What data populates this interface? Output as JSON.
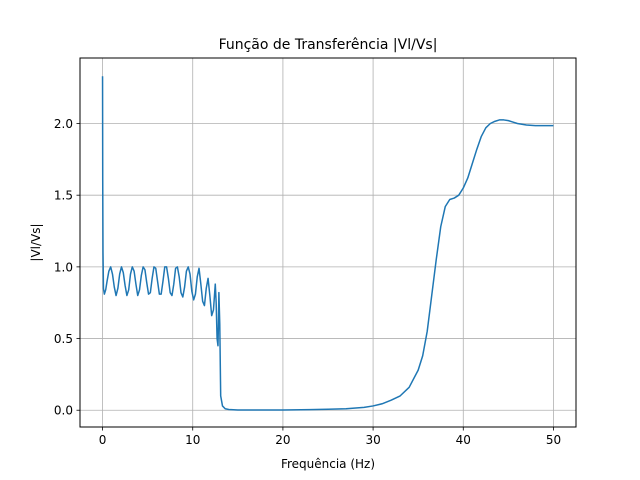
{
  "chart_data": {
    "type": "line",
    "title": "Função de Transferência |Vl/Vs|",
    "xlabel": "Frequência (Hz)",
    "ylabel": "|Vl/Vs|",
    "xlim": [
      -2.5,
      52.5
    ],
    "ylim": [
      -0.117,
      2.457
    ],
    "xticks": [
      0,
      10,
      20,
      30,
      40,
      50
    ],
    "xtick_labels": [
      "0",
      "10",
      "20",
      "30",
      "40",
      "50"
    ],
    "yticks": [
      0.0,
      0.5,
      1.0,
      1.5,
      2.0
    ],
    "ytick_labels": [
      "0.0",
      "0.5",
      "1.0",
      "1.5",
      "2.0"
    ],
    "grid": true,
    "series": [
      {
        "color": "#1f77b4",
        "x": [
          0,
          0.02,
          0.05,
          0.1,
          0.2,
          0.35,
          0.5,
          0.7,
          0.9,
          1.1,
          1.3,
          1.5,
          1.7,
          1.9,
          2.1,
          2.3,
          2.5,
          2.7,
          2.9,
          3.1,
          3.3,
          3.5,
          3.7,
          3.9,
          4.1,
          4.3,
          4.5,
          4.7,
          4.9,
          5.1,
          5.3,
          5.5,
          5.7,
          5.9,
          6.1,
          6.3,
          6.5,
          6.7,
          6.9,
          7.1,
          7.3,
          7.5,
          7.7,
          7.9,
          8.1,
          8.3,
          8.5,
          8.7,
          8.9,
          9.1,
          9.3,
          9.5,
          9.7,
          9.9,
          10.1,
          10.3,
          10.5,
          10.7,
          10.9,
          11.1,
          11.3,
          11.5,
          11.7,
          11.9,
          12.1,
          12.3,
          12.5,
          12.6,
          12.7,
          12.8,
          12.85,
          12.9,
          13.0,
          13.1,
          13.3,
          13.6,
          14,
          15,
          17,
          20,
          23,
          25,
          27,
          29,
          30,
          31,
          32,
          33,
          34,
          35,
          35.5,
          36,
          36.5,
          37,
          37.5,
          38,
          38.5,
          39,
          39.5,
          40,
          40.5,
          41,
          41.5,
          42,
          42.5,
          43,
          43.5,
          44,
          44.5,
          45,
          45.5,
          46,
          46.5,
          47,
          48,
          49,
          50
        ],
        "y": [
          2.33,
          1.6,
          1.1,
          0.85,
          0.81,
          0.84,
          0.9,
          0.97,
          1.0,
          0.95,
          0.86,
          0.8,
          0.85,
          0.95,
          1.0,
          0.96,
          0.87,
          0.8,
          0.84,
          0.95,
          1.0,
          0.97,
          0.88,
          0.8,
          0.84,
          0.94,
          1.0,
          0.98,
          0.89,
          0.81,
          0.82,
          0.92,
          1.0,
          0.99,
          0.9,
          0.81,
          0.81,
          0.9,
          1.0,
          1.0,
          0.92,
          0.82,
          0.8,
          0.88,
          0.99,
          1.0,
          0.93,
          0.82,
          0.79,
          0.86,
          0.97,
          1.0,
          0.95,
          0.83,
          0.77,
          0.81,
          0.93,
          0.99,
          0.88,
          0.76,
          0.73,
          0.85,
          0.92,
          0.8,
          0.66,
          0.7,
          0.88,
          0.75,
          0.5,
          0.45,
          0.6,
          0.82,
          0.6,
          0.1,
          0.03,
          0.01,
          0.005,
          0.002,
          0.002,
          0.002,
          0.004,
          0.007,
          0.01,
          0.02,
          0.03,
          0.045,
          0.07,
          0.1,
          0.16,
          0.28,
          0.38,
          0.55,
          0.8,
          1.05,
          1.28,
          1.42,
          1.47,
          1.48,
          1.5,
          1.55,
          1.62,
          1.72,
          1.82,
          1.91,
          1.97,
          2.0,
          2.015,
          2.025,
          2.025,
          2.02,
          2.01,
          2.0,
          1.995,
          1.99,
          1.985,
          1.985,
          1.985
        ]
      }
    ]
  }
}
